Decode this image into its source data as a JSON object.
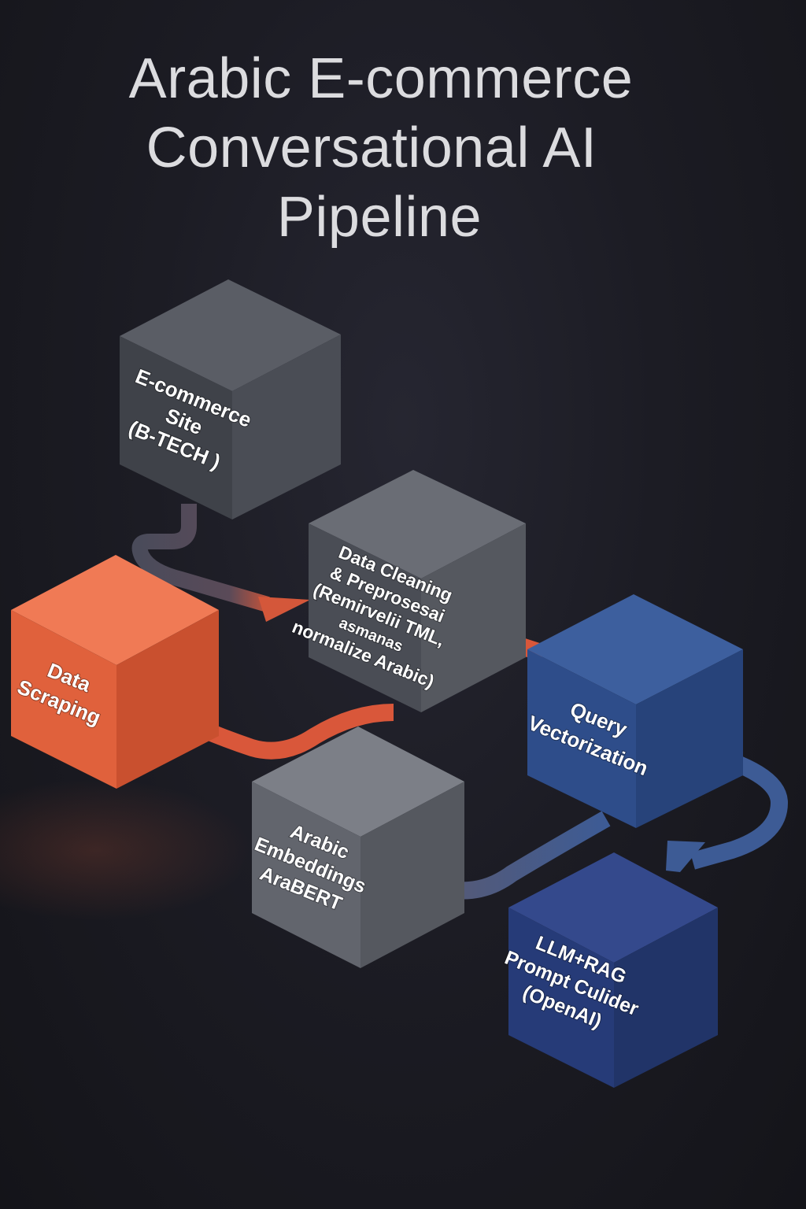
{
  "title": {
    "line1": "Arabic E-commerce",
    "line2": "Conversational AI",
    "line3": "Pipeline"
  },
  "colors": {
    "background": "#1a1a21",
    "cube_dark_gray": "#4a4d55",
    "cube_mid_gray": "#5a5d66",
    "cube_light_gray": "#6b6e76",
    "cube_orange": "#e0613c",
    "cube_blue": "#2e4d8a",
    "cube_navy": "#263b78",
    "arrow_gray": "#4f5060",
    "arrow_orange": "#d9573a",
    "arrow_blue": "#3d5b95"
  },
  "nodes": [
    {
      "id": "ecommerce",
      "lines": [
        "E-commerce",
        "Site",
        "(B-TECH )"
      ]
    },
    {
      "id": "scraping",
      "lines": [
        "Data",
        "Scraping"
      ]
    },
    {
      "id": "cleaning",
      "lines": [
        "Data Cleaning",
        "& Preprosesai",
        "(Remirvelii TML,",
        "asmanas",
        "normalize Arabic)"
      ]
    },
    {
      "id": "embeddings",
      "lines": [
        "Arabic",
        "Embeddings",
        "AraBERT"
      ]
    },
    {
      "id": "vectorization",
      "lines": [
        "Query",
        "Vectorization"
      ]
    },
    {
      "id": "llm",
      "lines": [
        "LLM+RAG",
        "Prompt Culider",
        "(OpenAI)"
      ]
    }
  ]
}
